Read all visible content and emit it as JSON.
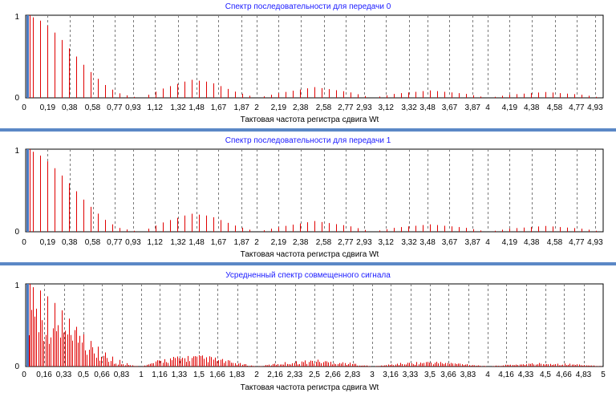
{
  "colors": {
    "bar": "#e00000",
    "title": "#1a1aff",
    "separator": "#5b88c6",
    "marker": "#4a78c0",
    "grid": "#7a7a7a"
  },
  "chart_data": [
    {
      "type": "bar",
      "title": "Спектр  последовательности для передачи 0",
      "xlabel": "Тактовая частота регистра сдвига Wt",
      "ylim": [
        0,
        1
      ],
      "y_ticks": [
        "0",
        "1"
      ],
      "x_ticks": [
        "0",
        "0,19",
        "0,38",
        "0,58",
        "0,77",
        "0,93",
        "1,12",
        "1,32",
        "1,48",
        "1,67",
        "1,87",
        "2",
        "2,19",
        "2,38",
        "2,58",
        "2,77",
        "2,93",
        "3,12",
        "3,32",
        "3,48",
        "3,67",
        "3,87",
        "4",
        "4,19",
        "4,38",
        "4,58",
        "4,77",
        "4,93"
      ],
      "x_range": [
        0,
        5
      ],
      "envelope_x": [
        0,
        0.1,
        0.2,
        0.3,
        0.4,
        0.5,
        0.6,
        0.7,
        0.8,
        0.9,
        1.0,
        1.2,
        1.43,
        1.6,
        1.8,
        2.0,
        2.2,
        2.5,
        2.8,
        3.0,
        3.2,
        3.5,
        3.8,
        4.0,
        4.2,
        4.5,
        4.8,
        5.0
      ],
      "envelope_y": [
        1.0,
        0.96,
        0.86,
        0.72,
        0.56,
        0.4,
        0.26,
        0.14,
        0.06,
        0.02,
        0.0,
        0.12,
        0.22,
        0.19,
        0.08,
        0.0,
        0.06,
        0.13,
        0.07,
        0.0,
        0.05,
        0.09,
        0.05,
        0.0,
        0.04,
        0.07,
        0.04,
        0.0
      ],
      "spacing": 0.0625,
      "grid": true
    },
    {
      "type": "bar",
      "title": "Спектр последовательности для передачи 1",
      "xlabel": "Тактовая частота регистра сдвига Wt",
      "ylim": [
        0,
        1
      ],
      "y_ticks": [
        "0",
        "1"
      ],
      "x_ticks": [
        "0",
        "0,19",
        "0,38",
        "0,58",
        "0,77",
        "0,93",
        "1,12",
        "1,32",
        "1,48",
        "1,67",
        "1,87",
        "2",
        "2,19",
        "2,38",
        "2,58",
        "2,77",
        "2,93",
        "3,12",
        "3,32",
        "3,48",
        "3,67",
        "3,87",
        "4",
        "4,19",
        "4,38",
        "4,58",
        "4,77",
        "4,93"
      ],
      "x_range": [
        0,
        5
      ],
      "envelope_x": [
        0,
        0.1,
        0.2,
        0.3,
        0.4,
        0.5,
        0.6,
        0.7,
        0.8,
        0.9,
        1.0,
        1.2,
        1.43,
        1.6,
        1.8,
        2.0,
        2.2,
        2.5,
        2.8,
        3.0,
        3.2,
        3.5,
        3.8,
        4.0,
        4.2,
        4.5,
        4.8,
        5.0
      ],
      "envelope_y": [
        1.0,
        0.95,
        0.84,
        0.7,
        0.55,
        0.39,
        0.25,
        0.13,
        0.05,
        0.02,
        0.0,
        0.12,
        0.22,
        0.19,
        0.08,
        0.0,
        0.06,
        0.13,
        0.07,
        0.0,
        0.05,
        0.09,
        0.05,
        0.0,
        0.04,
        0.07,
        0.04,
        0.0
      ],
      "spacing": 0.0625,
      "grid": true
    },
    {
      "type": "bar",
      "title": "Усредненный спектр совмещенного сигнала",
      "xlabel": "Тактовая частота регистра сдвига Wt",
      "ylim": [
        0,
        1
      ],
      "y_ticks": [
        "0",
        "1"
      ],
      "x_ticks": [
        "0",
        "0,16",
        "0,33",
        "0,5",
        "0,66",
        "0,83",
        "1",
        "1,16",
        "1,33",
        "1,5",
        "1,66",
        "1,83",
        "2",
        "2,16",
        "2,33",
        "2,5",
        "2,66",
        "2,83",
        "3",
        "3,16",
        "3,33",
        "3,5",
        "3,66",
        "3,83",
        "4",
        "4,16",
        "4,33",
        "4,5",
        "4,66",
        "4,83",
        "5"
      ],
      "x_range": [
        0,
        5
      ],
      "envelope_x": [
        0,
        0.1,
        0.2,
        0.3,
        0.4,
        0.5,
        0.6,
        0.7,
        0.8,
        0.9,
        1.0,
        1.2,
        1.43,
        1.6,
        1.8,
        2.0,
        2.2,
        2.5,
        2.8,
        3.0,
        3.2,
        3.5,
        3.8,
        4.0,
        4.2,
        4.5,
        4.8,
        5.0
      ],
      "envelope_y": [
        1.0,
        0.92,
        0.78,
        0.62,
        0.47,
        0.33,
        0.22,
        0.12,
        0.05,
        0.02,
        0.0,
        0.11,
        0.15,
        0.13,
        0.06,
        0.0,
        0.05,
        0.09,
        0.05,
        0.0,
        0.04,
        0.07,
        0.04,
        0.0,
        0.03,
        0.05,
        0.03,
        0.0
      ],
      "tall_lines_x": [
        0.0625,
        0.125,
        0.1875,
        0.25,
        0.3125,
        0.375,
        0.4375,
        0.5,
        0.5625,
        0.625,
        0.6875,
        0.75,
        0.8125,
        0.875
      ],
      "tall_lines_y": [
        0.96,
        0.92,
        0.85,
        0.77,
        0.68,
        0.58,
        0.48,
        0.39,
        0.31,
        0.24,
        0.17,
        0.12,
        0.08,
        0.04
      ],
      "spacing": 0.0156,
      "grid": true
    }
  ]
}
